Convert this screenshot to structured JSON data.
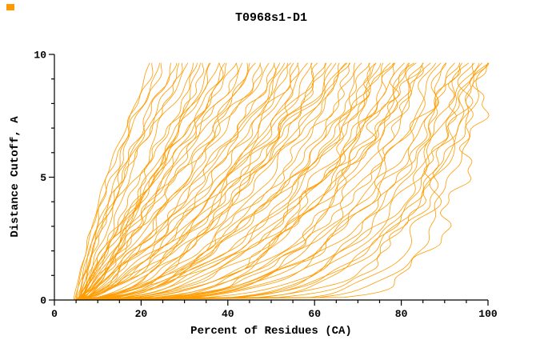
{
  "corner_marker_color": "#ff9900",
  "chart_data": {
    "type": "line",
    "title": "T0968s1-D1",
    "xlabel": "Percent of Residues (CA)",
    "ylabel": "Distance Cutoff, A",
    "xlim": [
      0,
      100
    ],
    "ylim": [
      0,
      10
    ],
    "x_major_ticks": [
      0,
      20,
      40,
      60,
      80,
      100
    ],
    "x_minor_step": 5,
    "y_major_ticks": [
      0,
      5,
      10
    ],
    "y_minor_step": 1,
    "curve_color": "#ff9c00",
    "axis_color": "#000000",
    "y_top_of_curves": 9.65,
    "curves_format": "[x_percent_at_cutoff_0, x_percent_at_cutoff_max, shape_exponent]",
    "curves": [
      [
        5,
        22,
        1.3
      ],
      [
        5.5,
        24,
        1.2
      ],
      [
        6,
        25,
        1.45
      ],
      [
        4.8,
        27,
        1.1
      ],
      [
        6.2,
        28,
        1.35
      ],
      [
        5.2,
        30,
        1.2
      ],
      [
        6.8,
        31,
        1.5
      ],
      [
        5.6,
        32,
        1.05
      ],
      [
        4.6,
        23,
        1.25
      ],
      [
        6.4,
        29,
        1.15
      ],
      [
        5,
        33,
        0.9
      ],
      [
        6,
        35,
        1.05
      ],
      [
        5.4,
        36,
        0.8
      ],
      [
        6.6,
        38,
        1.1
      ],
      [
        4.9,
        39,
        0.75
      ],
      [
        5.8,
        40,
        0.95
      ],
      [
        6.3,
        42,
        1.15
      ],
      [
        5.1,
        43,
        0.85
      ],
      [
        6.9,
        44,
        1.0
      ],
      [
        5.5,
        45,
        0.7
      ],
      [
        6.1,
        46,
        0.9
      ],
      [
        5.3,
        47,
        1.1
      ],
      [
        6.5,
        48,
        0.8
      ],
      [
        5.7,
        49,
        0.95
      ],
      [
        4.7,
        50,
        0.85
      ],
      [
        6.0,
        34,
        0.78
      ],
      [
        5.9,
        41,
        1.08
      ],
      [
        5.2,
        37,
        0.92
      ],
      [
        5,
        51,
        0.6
      ],
      [
        6,
        52,
        0.75
      ],
      [
        5.5,
        53,
        0.5
      ],
      [
        6.4,
        54,
        0.85
      ],
      [
        4.8,
        55,
        0.65
      ],
      [
        5.9,
        56,
        0.55
      ],
      [
        6.2,
        57,
        0.8
      ],
      [
        5.3,
        58,
        0.45
      ],
      [
        6.7,
        59,
        0.7
      ],
      [
        5.1,
        60,
        0.6
      ],
      [
        6.0,
        61,
        0.5
      ],
      [
        5.6,
        62,
        0.75
      ],
      [
        6.3,
        63,
        0.55
      ],
      [
        4.9,
        64,
        0.65
      ],
      [
        5.8,
        65,
        0.48
      ],
      [
        6.1,
        66,
        0.72
      ],
      [
        5.4,
        67,
        0.58
      ],
      [
        9.0,
        68,
        0.5
      ],
      [
        5.2,
        69,
        0.66
      ],
      [
        5.7,
        70,
        0.52
      ],
      [
        6.5,
        55,
        0.88
      ],
      [
        5.0,
        68,
        0.9
      ],
      [
        5.5,
        71,
        0.45
      ],
      [
        6,
        72,
        0.35
      ],
      [
        5.2,
        73,
        0.5
      ],
      [
        6.3,
        74,
        0.3
      ],
      [
        4.9,
        75,
        0.42
      ],
      [
        5.8,
        76,
        0.28
      ],
      [
        6.1,
        77,
        0.48
      ],
      [
        5.4,
        78,
        0.33
      ],
      [
        6.6,
        79,
        0.4
      ],
      [
        5.1,
        80,
        0.27
      ],
      [
        6.0,
        81,
        0.45
      ],
      [
        5.6,
        82,
        0.3
      ],
      [
        6.2,
        83,
        0.38
      ],
      [
        5.0,
        84,
        0.26
      ],
      [
        5.9,
        85,
        0.42
      ],
      [
        6.4,
        86,
        0.3
      ],
      [
        5.3,
        87,
        0.36
      ],
      [
        5.7,
        88,
        0.25
      ],
      [
        8.5,
        75,
        0.55
      ],
      [
        5.2,
        83,
        0.52
      ],
      [
        6.0,
        78,
        0.58
      ],
      [
        5.5,
        86,
        0.5
      ],
      [
        5.5,
        89,
        0.3
      ],
      [
        6,
        90,
        0.2
      ],
      [
        5.2,
        91,
        0.28
      ],
      [
        6.2,
        92,
        0.16
      ],
      [
        5.0,
        93,
        0.25
      ],
      [
        5.8,
        94,
        0.14
      ],
      [
        6.4,
        95,
        0.22
      ],
      [
        5.3,
        96,
        0.12
      ],
      [
        6.1,
        97,
        0.2
      ],
      [
        5.6,
        98,
        0.11
      ],
      [
        5.9,
        99,
        0.18
      ],
      [
        5.1,
        100,
        0.1
      ],
      [
        8.0,
        100,
        0.22
      ],
      [
        5.4,
        97,
        0.3
      ],
      [
        6.0,
        94,
        0.32
      ],
      [
        5.7,
        99,
        0.26
      ]
    ]
  }
}
